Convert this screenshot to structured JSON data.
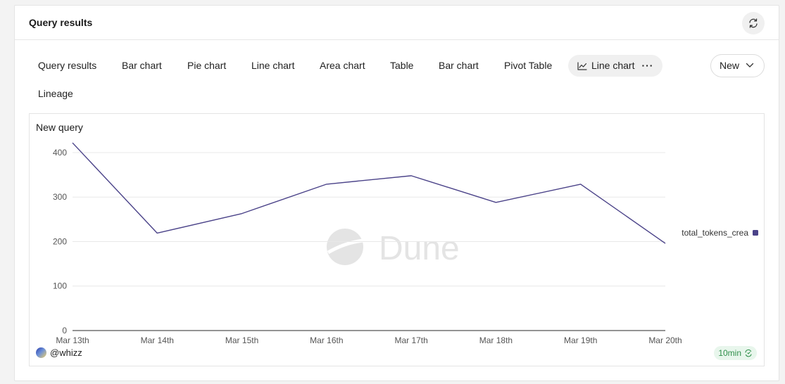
{
  "panel": {
    "title": "Query results",
    "refresh_icon": "refresh-icon"
  },
  "tabs": [
    {
      "label": "Query results"
    },
    {
      "label": "Bar chart"
    },
    {
      "label": "Pie chart"
    },
    {
      "label": "Line chart"
    },
    {
      "label": "Area chart"
    },
    {
      "label": "Table"
    },
    {
      "label": "Bar chart"
    },
    {
      "label": "Pivot Table"
    },
    {
      "label": "Line chart",
      "active": true
    },
    {
      "label": "Lineage"
    }
  ],
  "new_button": {
    "label": "New"
  },
  "chart": {
    "author": "@whizz",
    "refresh_interval": "10min",
    "watermark": "Dune",
    "line_color": "#4b4389"
  },
  "chart_data": {
    "type": "line",
    "title": "New query",
    "categories": [
      "Mar 13th",
      "Mar 14th",
      "Mar 15th",
      "Mar 16th",
      "Mar 17th",
      "Mar 18th",
      "Mar 19th",
      "Mar 20th"
    ],
    "series": [
      {
        "name": "total_tokens_crea",
        "values": [
          422,
          219,
          263,
          329,
          348,
          288,
          329,
          196
        ]
      }
    ],
    "yticks": [
      0,
      100,
      200,
      300,
      400
    ],
    "ylim": [
      0,
      430
    ],
    "xlabel": "",
    "ylabel": "",
    "grid": true,
    "legend": "right"
  }
}
